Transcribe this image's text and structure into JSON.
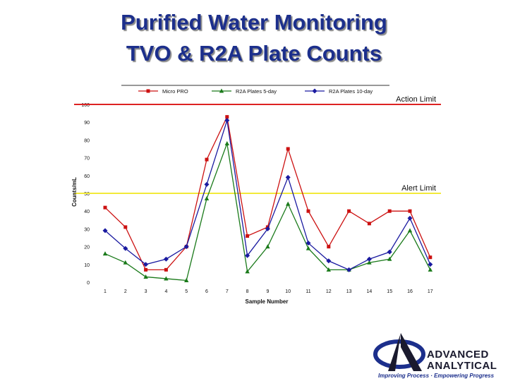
{
  "slide": {
    "title_line1": "Purified Water Monitoring",
    "title_line2": "TVO & R2A Plate Counts"
  },
  "chart_data": {
    "type": "line",
    "title": "",
    "xlabel": "Sample Number",
    "ylabel": "Counts/mL",
    "ylim": [
      0,
      100
    ],
    "yticks": [
      0,
      10,
      20,
      30,
      40,
      50,
      60,
      70,
      80,
      90,
      100
    ],
    "x": [
      1,
      2,
      3,
      4,
      5,
      6,
      7,
      8,
      9,
      10,
      11,
      12,
      13,
      14,
      15,
      16,
      17
    ],
    "legend_position": "top",
    "series": [
      {
        "name": "Micro PRO",
        "color": "#cc1111",
        "marker": "square",
        "values": [
          42,
          31,
          7,
          7,
          20,
          69,
          93,
          26,
          31,
          75,
          40,
          20,
          40,
          33,
          40,
          40,
          14
        ]
      },
      {
        "name": "R2A Plates 5-day",
        "color": "#1a7a1a",
        "marker": "triangle",
        "values": [
          16,
          11,
          3,
          2,
          1,
          47,
          78,
          6,
          20,
          44,
          19,
          7,
          7,
          11,
          13,
          29,
          7
        ]
      },
      {
        "name": "R2A Plates 10-day",
        "color": "#1a1aa0",
        "marker": "diamond",
        "values": [
          29,
          19,
          10,
          13,
          20,
          55,
          91,
          15,
          30,
          59,
          22,
          12,
          7,
          13,
          17,
          36,
          10
        ]
      }
    ],
    "limits": [
      {
        "label": "Action Limit",
        "value": 100,
        "color": "#dd2222"
      },
      {
        "label": "Alert Limit",
        "value": 50,
        "color": "#f2ea3a"
      }
    ]
  },
  "logo": {
    "name_line1": "ADVANCED",
    "name_line2": "ANALYTICAL",
    "tagline": "Improving Process · Empowering Progress"
  }
}
